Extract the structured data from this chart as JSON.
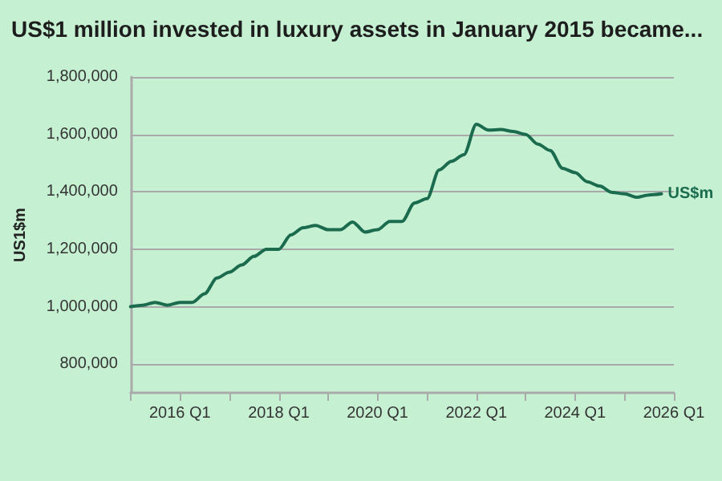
{
  "chart_data": {
    "type": "line",
    "title": "US$1 million invested in luxury assets in January 2015 became...",
    "ylabel": "US1$m",
    "x": [
      "2015-01",
      "2015-04",
      "2015-07",
      "2015-10",
      "2016-01",
      "2016-04",
      "2016-07",
      "2016-10",
      "2017-01",
      "2017-04",
      "2017-07",
      "2017-10",
      "2018-01",
      "2018-04",
      "2018-07",
      "2018-10",
      "2019-01",
      "2019-04",
      "2019-07",
      "2019-10",
      "2020-01",
      "2020-04",
      "2020-07",
      "2020-10",
      "2021-01",
      "2021-04",
      "2021-07",
      "2021-10",
      "2022-01",
      "2022-04",
      "2022-07",
      "2022-10",
      "2023-01",
      "2023-04",
      "2023-07",
      "2023-10",
      "2024-01",
      "2024-04",
      "2024-07",
      "2024-10",
      "2025-01",
      "2025-04",
      "2025-07",
      "2025-10"
    ],
    "series": [
      {
        "name": "US$m",
        "color": "#1b6b4f",
        "values": [
          1000000,
          1005000,
          1015000,
          1005000,
          1015000,
          1015000,
          1045000,
          1100000,
          1120000,
          1145000,
          1175000,
          1200000,
          1200000,
          1250000,
          1275000,
          1283000,
          1268000,
          1268000,
          1295000,
          1260000,
          1268000,
          1297000,
          1297000,
          1361000,
          1376000,
          1476000,
          1506000,
          1529000,
          1635000,
          1615000,
          1617000,
          1610000,
          1600000,
          1566000,
          1544000,
          1482000,
          1467000,
          1435000,
          1420000,
          1398000,
          1393000,
          1381000,
          1389000,
          1393000
        ]
      }
    ],
    "xlim": [
      "2015-01",
      "2026-01"
    ],
    "xticks": [
      {
        "value": "2015-01",
        "label": null
      },
      {
        "value": "2016-01",
        "label": "2016 Q1"
      },
      {
        "value": "2017-01",
        "label": null
      },
      {
        "value": "2018-01",
        "label": "2018 Q1"
      },
      {
        "value": "2019-01",
        "label": null
      },
      {
        "value": "2020-01",
        "label": "2020 Q1"
      },
      {
        "value": "2021-01",
        "label": null
      },
      {
        "value": "2022-01",
        "label": "2022 Q1"
      },
      {
        "value": "2023-01",
        "label": null
      },
      {
        "value": "2024-01",
        "label": "2024 Q1"
      },
      {
        "value": "2025-01",
        "label": null
      },
      {
        "value": "2026-01",
        "label": "2026 Q1"
      }
    ],
    "ylim": [
      700000,
      1800000
    ],
    "yticks": [
      {
        "value": 800000,
        "label": "800,000"
      },
      {
        "value": 1000000,
        "label": "1,000,000"
      },
      {
        "value": 1200000,
        "label": "1,200,000"
      },
      {
        "value": 1400000,
        "label": "1,400,000"
      },
      {
        "value": 1600000,
        "label": "1,600,000"
      },
      {
        "value": 1800000,
        "label": "1,800,000"
      }
    ],
    "grid": "y",
    "marker": "none",
    "line_style": "solid"
  }
}
